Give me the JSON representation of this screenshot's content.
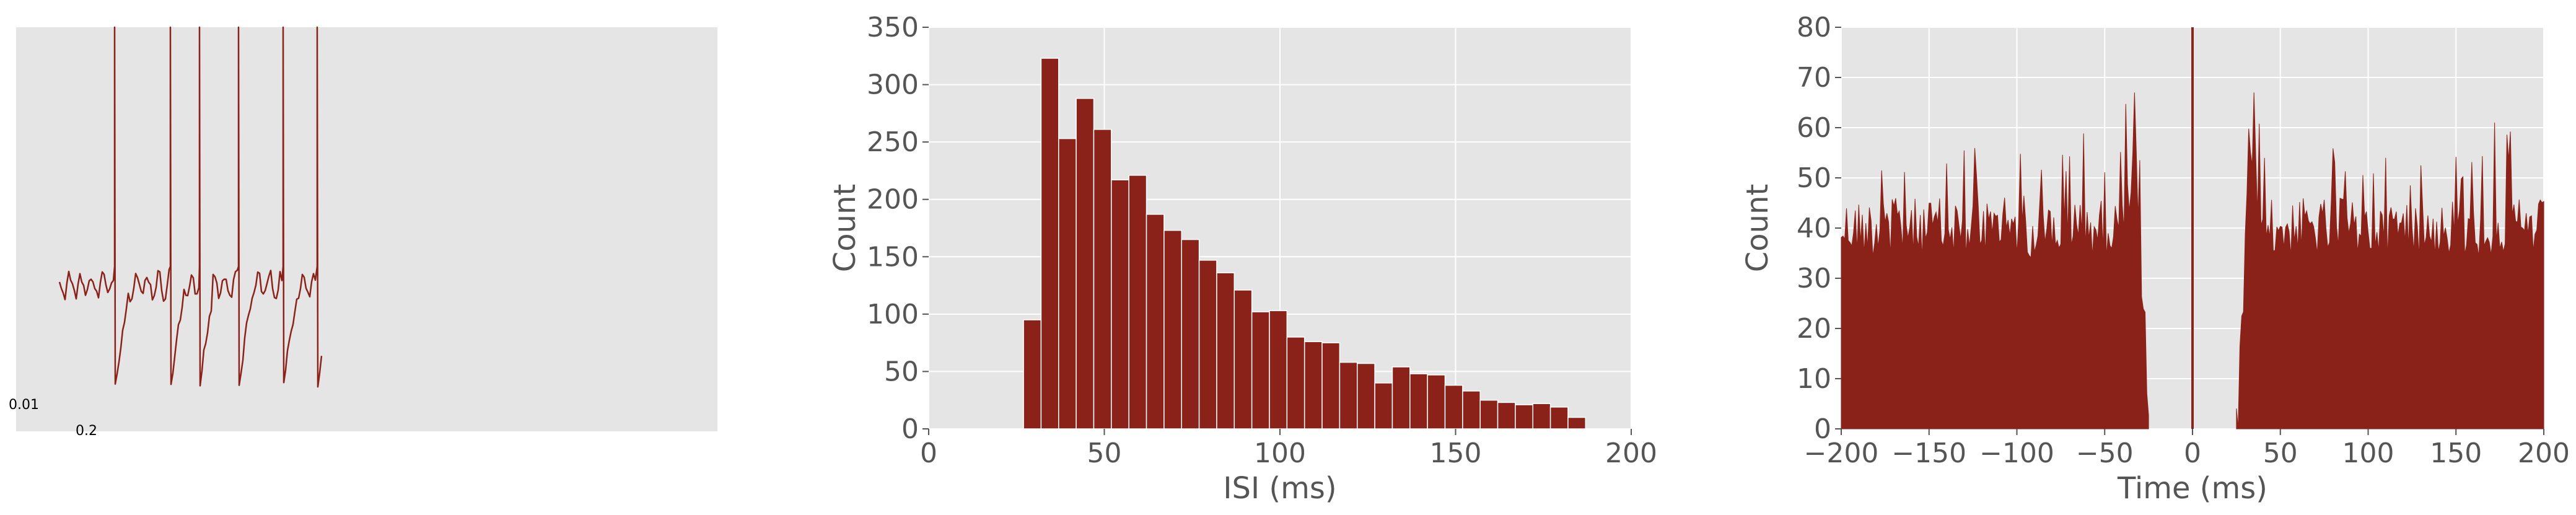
{
  "colors": {
    "series": "#8b2219",
    "panel_background": "#e5e5e5",
    "grid": "#ffffff",
    "text": "#555555"
  },
  "chart_data": [
    {
      "type": "line",
      "panel": "voltage-trace",
      "title": "",
      "xlabel": "",
      "ylabel": "",
      "grid": false,
      "scale_bar_labels": [
        "0.01",
        "0.2"
      ],
      "spike_count": 6
    },
    {
      "type": "bar",
      "panel": "isi-histogram",
      "title": "",
      "xlabel": "ISI (ms)",
      "ylabel": "Count",
      "xlim": [
        0,
        200
      ],
      "ylim": [
        0,
        350
      ],
      "grid": true,
      "xticks": [
        "0",
        "50",
        "100",
        "150",
        "200"
      ],
      "yticks": [
        "0",
        "50",
        "100",
        "150",
        "200",
        "250",
        "300",
        "350"
      ],
      "bin_edges": [
        27,
        32,
        37,
        42,
        47,
        52,
        57,
        62,
        67,
        72,
        77,
        82,
        87,
        92,
        97,
        102,
        107,
        112,
        117,
        122,
        127,
        132,
        137,
        142,
        147,
        152,
        157,
        162,
        167,
        172,
        177,
        182,
        187,
        192,
        197,
        202
      ],
      "values": [
        95,
        323,
        253,
        288,
        261,
        217,
        221,
        187,
        173,
        165,
        147,
        136,
        121,
        102,
        103,
        80,
        76,
        75,
        58,
        57,
        40,
        54,
        48,
        47,
        38,
        33,
        25,
        23,
        21,
        22,
        19,
        10,
        0,
        0,
        0
      ]
    },
    {
      "type": "area",
      "panel": "autocorrelogram",
      "title": "",
      "xlabel": "Time (ms)",
      "ylabel": "Count",
      "xlim": [
        -200,
        200
      ],
      "ylim": [
        0,
        80
      ],
      "grid": true,
      "xticks": [
        "−200",
        "−150",
        "−100",
        "−50",
        "0",
        "50",
        "100",
        "150",
        "200"
      ],
      "yticks": [
        "0",
        "10",
        "20",
        "30",
        "40",
        "50",
        "60",
        "70",
        "80"
      ],
      "bin_width_ms": 1,
      "refractory_gap_ms": 25,
      "central_peak_value": 80
    }
  ]
}
